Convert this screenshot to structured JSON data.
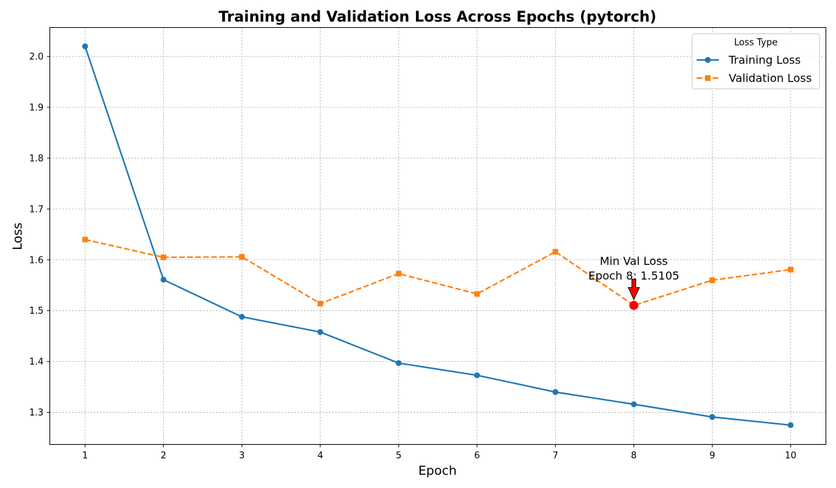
{
  "chart_data": {
    "type": "line",
    "title": "Training and Validation Loss Across Epochs (pytorch)",
    "xlabel": "Epoch",
    "ylabel": "Loss",
    "x": [
      1,
      2,
      3,
      4,
      5,
      6,
      7,
      8,
      9,
      10
    ],
    "xlim": [
      0.55,
      10.45
    ],
    "ylim": [
      1.237,
      2.057
    ],
    "xticks": [
      1,
      2,
      3,
      4,
      5,
      6,
      7,
      8,
      9,
      10
    ],
    "yticks": [
      1.3,
      1.4,
      1.5,
      1.6,
      1.7,
      1.8,
      1.9,
      2.0
    ],
    "ytick_labels": [
      "1.3",
      "1.4",
      "1.5",
      "1.6",
      "1.7",
      "1.8",
      "1.9",
      "2.0"
    ],
    "grid": true,
    "legend": {
      "title": "Loss Type",
      "placement": "top-right"
    },
    "series": [
      {
        "name": "Training Loss",
        "values": [
          2.02,
          1.561,
          1.488,
          1.458,
          1.397,
          1.373,
          1.34,
          1.316,
          1.291,
          1.275
        ],
        "color": "#1f77b4",
        "line_style": "solid",
        "marker": "circle"
      },
      {
        "name": "Validation Loss",
        "values": [
          1.64,
          1.605,
          1.606,
          1.514,
          1.573,
          1.533,
          1.616,
          1.5105,
          1.56,
          1.581
        ],
        "color": "#ff7f0e",
        "line_style": "dashed",
        "marker": "square"
      }
    ],
    "annotation": {
      "line1": "Min Val Loss",
      "line2": "Epoch 8: 1.5105",
      "x": 8,
      "y": 1.5105,
      "marker_color": "#ff0000",
      "arrow_color": "#ff0000"
    }
  }
}
